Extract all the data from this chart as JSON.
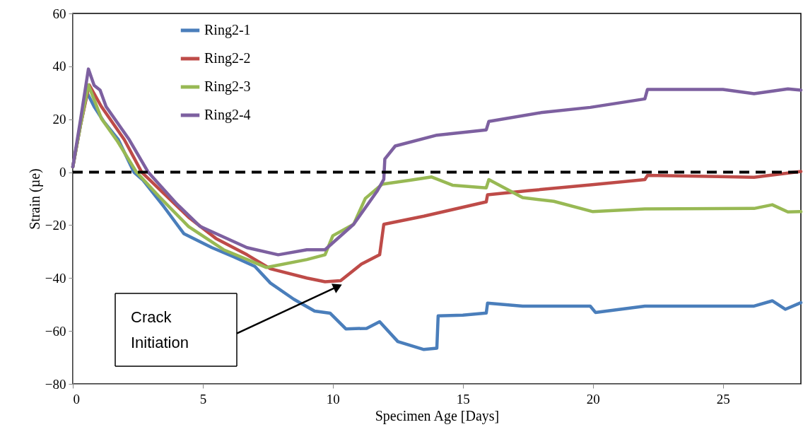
{
  "chart_data": {
    "type": "line",
    "xlabel": "Specimen Age [Days]",
    "ylabel": "Strain (µe)",
    "xlim": [
      0,
      28
    ],
    "xticks": [
      0,
      5,
      10,
      15,
      20,
      25
    ],
    "ylim": [
      -80,
      60
    ],
    "yticks": [
      -80,
      -60,
      -40,
      -20,
      0,
      20,
      40,
      60
    ],
    "grid": false,
    "legend": "top left",
    "marker": "none",
    "line_style": "solid",
    "ref_lines": [
      {
        "axis": "y",
        "value": 0,
        "color": "#000000",
        "line_style": "dashed"
      }
    ],
    "annotations": [
      "Crack Initiation"
    ],
    "series": [
      {
        "name": "Ring2-1",
        "color": "#4a7ebb",
        "x": [
          0,
          0.3,
          0.55,
          0.82,
          1.2,
          1.75,
          2.35,
          2.7,
          3.5,
          4.27,
          5.35,
          6.2,
          7.0,
          7.6,
          8.5,
          9.3,
          9.9,
          10.5,
          11.3,
          11.8,
          12.5,
          13.5,
          14.0,
          14.05,
          15.0,
          15.9,
          15.95,
          17.3,
          19.9,
          20.1,
          22.0,
          26.2,
          26.9,
          27.4,
          28
        ],
        "values": [
          2,
          18,
          30,
          24.8,
          19,
          12.3,
          0,
          -3,
          -13,
          -23.2,
          -28.5,
          -32,
          -35.6,
          -41.9,
          -48,
          -52.5,
          -53.3,
          -59.2,
          -59,
          -56.5,
          -64,
          -67,
          -66.5,
          -54.3,
          -54,
          -53.2,
          -49.5,
          -50.6,
          -50.6,
          -53,
          -50.6,
          -50.6,
          -48.6,
          -51.8,
          -49.3
        ]
      },
      {
        "name": "Ring2-2",
        "color": "#be4b48",
        "x": [
          0,
          0.3,
          0.63,
          1.1,
          1.98,
          2.65,
          3.5,
          4.45,
          5.5,
          6.7,
          7.6,
          9.0,
          9.7,
          10.3,
          11.1,
          11.8,
          11.96,
          13.5,
          15.9,
          15.95,
          17.5,
          19.9,
          22.0,
          22.1,
          26.2,
          28
        ],
        "values": [
          2,
          18,
          33,
          24.8,
          12.3,
          0,
          -8,
          -17,
          -25,
          -31.2,
          -36.5,
          -40,
          -41.4,
          -41,
          -34.7,
          -31.2,
          -19.7,
          -16.6,
          -11.2,
          -8.5,
          -7,
          -4.8,
          -2.8,
          -1.2,
          -1.9,
          0.3
        ]
      },
      {
        "name": "Ring2-3",
        "color": "#98b954",
        "x": [
          0,
          0.3,
          0.6,
          1.1,
          1.73,
          2.45,
          3.3,
          4.45,
          5.8,
          7.45,
          9.0,
          9.7,
          10.0,
          10.8,
          11.25,
          11.9,
          13.0,
          13.8,
          14.6,
          15.9,
          16.0,
          17.3,
          18.5,
          20.0,
          22.0,
          26.2,
          26.9,
          27.5,
          28
        ],
        "values": [
          2,
          18,
          33,
          20.3,
          11.5,
          0,
          -9,
          -20.5,
          -29.3,
          -36,
          -33,
          -31.2,
          -24,
          -19.7,
          -9.9,
          -4.5,
          -3,
          -1.8,
          -4.9,
          -5.9,
          -2.8,
          -9.6,
          -11,
          -14.9,
          -13.9,
          -13.7,
          -12.3,
          -15,
          -14.9
        ]
      },
      {
        "name": "Ring2-4",
        "color": "#7d60a0",
        "x": [
          0,
          0.3,
          0.6,
          0.82,
          1.05,
          1.28,
          2.17,
          2.9,
          4.0,
          4.9,
          6.7,
          7.9,
          9.0,
          9.7,
          10.8,
          11.7,
          11.96,
          12.0,
          12.4,
          14.0,
          15.9,
          16.0,
          18.0,
          19.9,
          22.0,
          22.1,
          25.0,
          26.2,
          27.5,
          28
        ],
        "values": [
          2,
          20,
          39,
          32.8,
          31,
          24.8,
          12.3,
          0,
          -12,
          -20.5,
          -28.5,
          -31.2,
          -29.3,
          -29.3,
          -19.7,
          -7.2,
          -2.7,
          5,
          9.9,
          14,
          16,
          19.2,
          22.5,
          24.5,
          27.7,
          31.3,
          31.3,
          29.7,
          31.5,
          31
        ]
      }
    ]
  }
}
